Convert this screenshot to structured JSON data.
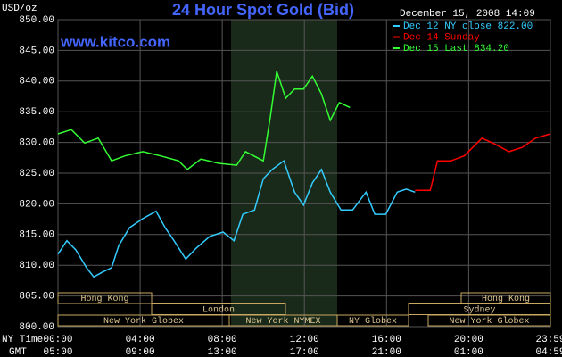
{
  "chart_data": {
    "type": "line",
    "title": "24 Hour Spot Gold (Bid)",
    "site": "www.kitco.com",
    "timestamp": "December 15, 2008 14:09",
    "y_unit": "USD/oz",
    "x_label": "NY Time",
    "x2_label": "GMT",
    "ylim": [
      800,
      850
    ],
    "yticks": [
      {
        "value": 800,
        "label": "800.00"
      },
      {
        "value": 805,
        "label": "805.00"
      },
      {
        "value": 810,
        "label": "810.00"
      },
      {
        "value": 815,
        "label": "815.00"
      },
      {
        "value": 820,
        "label": "820.00"
      },
      {
        "value": 825,
        "label": "825.00"
      },
      {
        "value": 830,
        "label": "830.00"
      },
      {
        "value": 835,
        "label": "835.00"
      },
      {
        "value": 840,
        "label": "840.00"
      },
      {
        "value": 845,
        "label": "845.00"
      },
      {
        "value": 850,
        "label": "850.00"
      }
    ],
    "xlim": [
      0,
      23.98
    ],
    "xticks": [
      {
        "value": 0,
        "label": "00:00"
      },
      {
        "value": 4,
        "label": "04:00"
      },
      {
        "value": 8,
        "label": "08:00"
      },
      {
        "value": 12,
        "label": "12:00"
      },
      {
        "value": 16,
        "label": "16:00"
      },
      {
        "value": 20,
        "label": "20:00"
      },
      {
        "value": 23.98,
        "label": "23:59"
      }
    ],
    "x2ticks": [
      {
        "value": 0,
        "label": "05:00"
      },
      {
        "value": 4,
        "label": "09:00"
      },
      {
        "value": 8,
        "label": "13:00"
      },
      {
        "value": 12,
        "label": "17:00"
      },
      {
        "value": 16,
        "label": "21:00"
      },
      {
        "value": 20,
        "label": "01:00"
      },
      {
        "value": 23.98,
        "label": "04:59"
      }
    ],
    "grid": true,
    "legend": "upper right",
    "sessions": [
      "Hong Kong",
      "London",
      "New York Globex",
      "New York NYMEX",
      "NY Globex",
      "Sydney",
      "Hong Kong",
      "New York Globex"
    ],
    "series": [
      {
        "name": "Dec 12 NY close 822.00",
        "color": "#33ccff",
        "x": [
          0,
          0.43,
          0.87,
          1.39,
          1.74,
          2.17,
          2.61,
          2.96,
          3.48,
          4.13,
          4.78,
          5.22,
          5.65,
          6.22,
          6.74,
          7.39,
          8.04,
          8.57,
          9.0,
          9.57,
          10.0,
          10.43,
          11.0,
          11.52,
          11.96,
          12.39,
          12.83,
          13.26,
          13.78,
          14.35,
          15.0,
          15.43,
          15.96,
          16.52,
          16.96,
          17.39
        ],
        "values": [
          811.8,
          814,
          812.5,
          809.6,
          808.1,
          808.9,
          809.6,
          813.2,
          816.1,
          817.6,
          818.8,
          816.1,
          814,
          811,
          812.8,
          814.7,
          815.4,
          814,
          818.3,
          819,
          824.1,
          825.6,
          827,
          821.9,
          819.8,
          823.4,
          825.6,
          821.9,
          819,
          819,
          821.9,
          818.3,
          818.3,
          821.9,
          822.4,
          821.9
        ]
      },
      {
        "name": "Dec 14 Sunday",
        "color": "#ff0000",
        "x": [
          17.39,
          18.13,
          18.48,
          19.13,
          19.78,
          20.65,
          21.3,
          21.96,
          22.61,
          23.26,
          23.98
        ],
        "values": [
          822.2,
          822.2,
          827,
          827,
          827.8,
          830.7,
          829.7,
          828.5,
          829.2,
          830.7,
          831.4
        ]
      },
      {
        "name": "Dec 15 Last 834.20",
        "color": "#33ff33",
        "x": [
          0,
          0.65,
          1.3,
          1.96,
          2.61,
          3.26,
          4.13,
          5.0,
          5.87,
          6.3,
          6.96,
          7.83,
          8.7,
          9.13,
          10.0,
          10.35,
          10.65,
          11.09,
          11.52,
          11.96,
          12.39,
          12.83,
          13.26,
          13.7,
          14.22
        ],
        "values": [
          831.4,
          832.1,
          829.9,
          830.7,
          827,
          827.8,
          828.5,
          827.8,
          827,
          825.6,
          827.3,
          826.6,
          826.3,
          828.5,
          827,
          834.3,
          841.6,
          837.2,
          838.7,
          838.7,
          840.8,
          837.9,
          833.6,
          836.5,
          835.7
        ]
      }
    ]
  }
}
